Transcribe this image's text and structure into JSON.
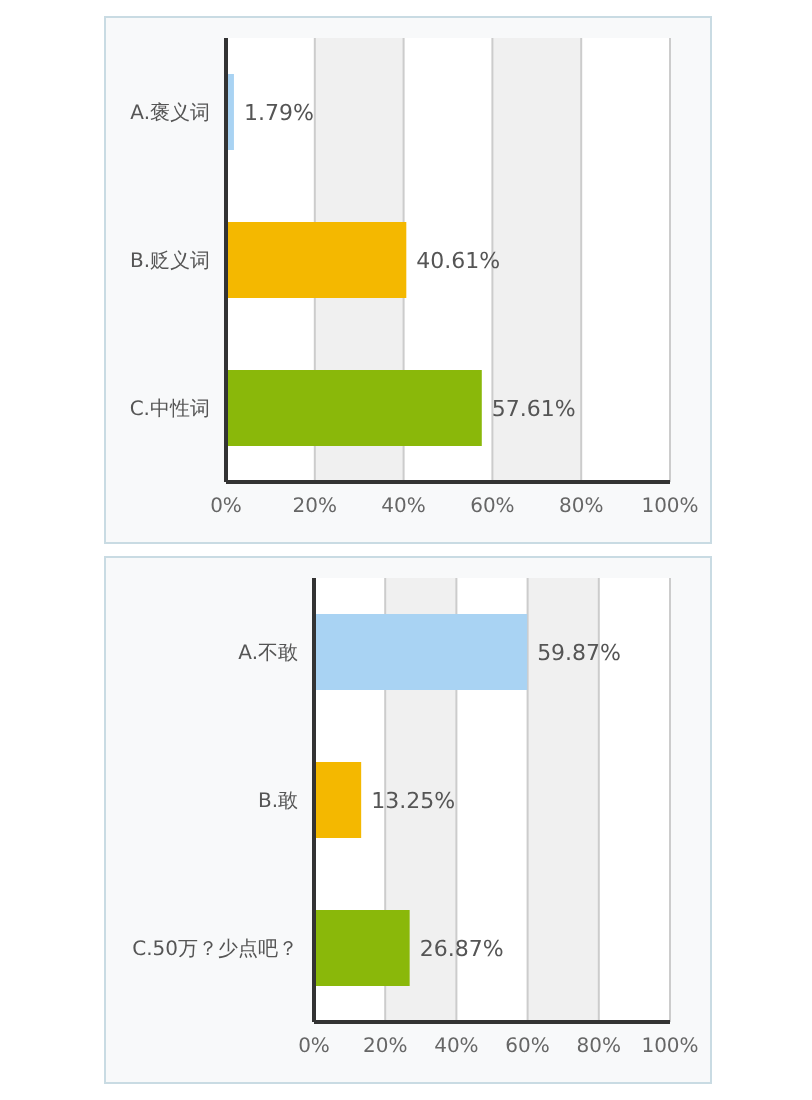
{
  "chart_data": [
    {
      "type": "bar",
      "orientation": "horizontal",
      "categories": [
        "A.褒义词",
        "B.贬义词",
        "C.中性词"
      ],
      "values": [
        1.79,
        40.61,
        57.61
      ],
      "colors": [
        "#a9d3f3",
        "#f4b800",
        "#8ab80a"
      ],
      "value_labels": [
        "1.79%",
        "40.61%",
        "57.61%"
      ],
      "xlim": [
        0,
        100
      ],
      "xticks": [
        {
          "value": 0,
          "label": "0%"
        },
        {
          "value": 20,
          "label": "20%"
        },
        {
          "value": 40,
          "label": "40%"
        },
        {
          "value": 60,
          "label": "60%"
        },
        {
          "value": 80,
          "label": "80%"
        },
        {
          "value": 100,
          "label": "100%"
        }
      ],
      "grid": "x"
    },
    {
      "type": "bar",
      "orientation": "horizontal",
      "categories": [
        "A.不敢",
        "B.敢",
        "C.50万？少点吧？"
      ],
      "values": [
        59.87,
        13.25,
        26.87
      ],
      "colors": [
        "#a9d3f3",
        "#f4b800",
        "#8ab80a"
      ],
      "value_labels": [
        "59.87%",
        "13.25%",
        "26.87%"
      ],
      "xlim": [
        0,
        100
      ],
      "xticks": [
        {
          "value": 0,
          "label": "0%"
        },
        {
          "value": 20,
          "label": "20%"
        },
        {
          "value": 40,
          "label": "40%"
        },
        {
          "value": 60,
          "label": "60%"
        },
        {
          "value": 80,
          "label": "80%"
        },
        {
          "value": 100,
          "label": "100%"
        }
      ],
      "grid": "x"
    }
  ]
}
